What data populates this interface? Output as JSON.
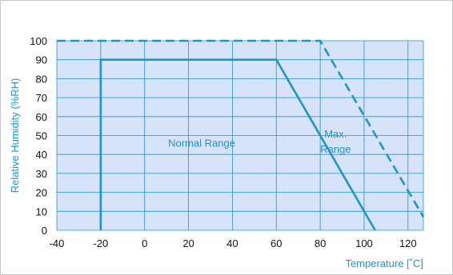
{
  "chart_data": {
    "type": "line",
    "xlabel": "Temperature [˚C]",
    "ylabel": "Relative Humidity (%RH)",
    "xlim": [
      -40,
      127
    ],
    "ylim": [
      0,
      100
    ],
    "x_ticks": [
      "-40",
      "-20",
      "0",
      "20",
      "40",
      "60",
      "80",
      "100",
      "120"
    ],
    "y_ticks": [
      "0",
      "10",
      "20",
      "30",
      "40",
      "50",
      "60",
      "70",
      "80",
      "90",
      "100"
    ],
    "grid": true,
    "series": [
      {
        "style": "solid",
        "x": [
          -20,
          -20,
          60,
          105
        ],
        "y": [
          0,
          90,
          90,
          0
        ]
      },
      {
        "style": "dashed",
        "x": [
          -40,
          80,
          127
        ],
        "y": [
          100,
          100,
          7
        ]
      }
    ],
    "annotations": [
      {
        "text": "Normal Range"
      },
      {
        "text": "Max."
      },
      {
        "text": "Range"
      }
    ],
    "colors": {
      "plot_background": "#d6e3f8",
      "grid": "#1f94c9",
      "line": "#1f94c9",
      "axis_title": "#1f94c9",
      "tick_label": "#111111"
    }
  }
}
